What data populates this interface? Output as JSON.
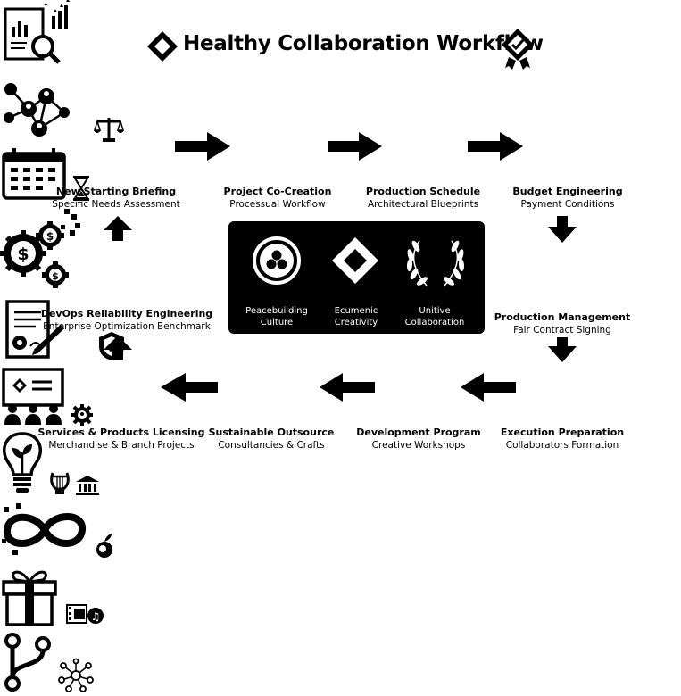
{
  "title": "Healthy Collaboration Workflow",
  "nodes": {
    "briefing": {
      "title": "New Starting Briefing",
      "subtitle": "Specific Needs Assessment"
    },
    "cocreation": {
      "title": "Project Co-Creation",
      "subtitle": "Processual Workflow"
    },
    "schedule": {
      "title": "Production Schedule",
      "subtitle": "Architectural Blueprints"
    },
    "budget": {
      "title": "Budget Engineering",
      "subtitle": "Payment Conditions"
    },
    "management": {
      "title": "Production Management",
      "subtitle": "Fair Contract Signing"
    },
    "execution": {
      "title": "Execution Preparation",
      "subtitle": "Collaborators Formation"
    },
    "development": {
      "title": "Development Program",
      "subtitle": "Creative Workshops"
    },
    "outsource": {
      "title": "Sustainable Outsource",
      "subtitle": "Consultancies & Crafts"
    },
    "licensing": {
      "title": "Services & Products Licensing",
      "subtitle": "Merchandise & Branch Projects"
    },
    "devops": {
      "title": "DevOps Reliability Engineering",
      "subtitle": "Enterprise Optimization Benchmark"
    }
  },
  "center": {
    "items": [
      {
        "line1": "Peacebuilding",
        "line2": "Culture"
      },
      {
        "line1": "Ecumenic",
        "line2": "Creativity"
      },
      {
        "line1": "Unitive",
        "line2": "Collaboration"
      }
    ]
  },
  "colors": {
    "ink": "#000000",
    "paper": "#ffffff"
  },
  "icons": [
    "diamond-logo-icon",
    "award-badge-icon",
    "report-magnifier-icon",
    "network-people-icon",
    "scales-icon",
    "calendar-icon",
    "hourglass-icon",
    "dollar-gears-icon",
    "contract-pen-icon",
    "shield-check-icon",
    "presentation-team-icon",
    "gear-people-icon",
    "lightbulb-plant-icon",
    "lyre-icon",
    "museum-icon",
    "infinity-leaf-icon",
    "apple-icon",
    "gift-box-icon",
    "media-icon",
    "git-branch-icon",
    "network-icon"
  ]
}
